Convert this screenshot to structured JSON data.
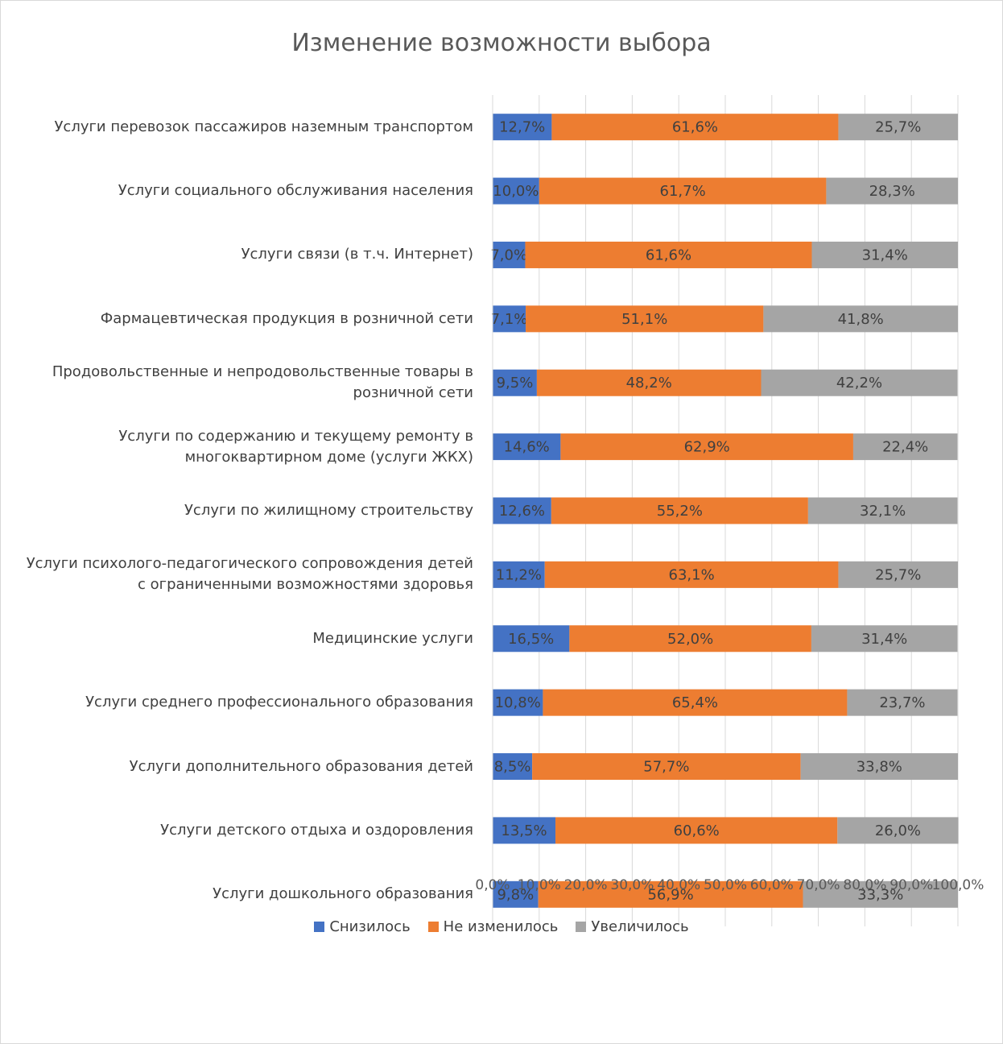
{
  "chart_data": {
    "type": "bar",
    "orientation": "horizontal",
    "stacked": "percent",
    "title": "Изменение возможности выбора",
    "categories": [
      "Услуги перевозок пассажиров наземным транспортом",
      "Услуги социального обслуживания населения",
      "Услуги связи (в т.ч. Интернет)",
      "Фармацевтическая продукция в розничной сети",
      "Продовольственные и непродовольственные товары в розничной сети",
      "Услуги по содержанию и текущему ремонту в многоквартирном доме (услуги ЖКХ)",
      "Услуги по жилищному строительству",
      "Услуги психолого-педагогического сопровождения детей с ограниченными возможностями здоровья",
      "Медицинские услуги",
      "Услуги среднего профессионального образования",
      "Услуги дополнительного образования детей",
      "Услуги детского отдыха и оздоровления",
      "Услуги дошкольного образования"
    ],
    "series": [
      {
        "name": "Снизилось",
        "color": "#4472c4",
        "values": [
          12.7,
          10.0,
          7.0,
          7.1,
          9.5,
          14.6,
          12.6,
          11.2,
          16.5,
          10.8,
          8.5,
          13.5,
          9.8
        ],
        "labels": [
          "12,7%",
          "10,0%",
          "7,0%",
          "7,1%",
          "9,5%",
          "14,6%",
          "12,6%",
          "11,2%",
          "16,5%",
          "10,8%",
          "8,5%",
          "13,5%",
          "9,8%"
        ]
      },
      {
        "name": "Не изменилось",
        "color": "#ed7d31",
        "values": [
          61.6,
          61.7,
          61.6,
          51.1,
          48.2,
          62.9,
          55.2,
          63.1,
          52.0,
          65.4,
          57.7,
          60.6,
          56.9
        ],
        "labels": [
          "61,6%",
          "61,7%",
          "61,6%",
          "51,1%",
          "48,2%",
          "62,9%",
          "55,2%",
          "63,1%",
          "52,0%",
          "65,4%",
          "57,7%",
          "60,6%",
          "56,9%"
        ]
      },
      {
        "name": "Увеличилось",
        "color": "#a5a5a5",
        "values": [
          25.7,
          28.3,
          31.4,
          41.8,
          42.2,
          22.4,
          32.1,
          25.7,
          31.4,
          23.7,
          33.8,
          26.0,
          33.3
        ],
        "labels": [
          "25,7%",
          "28,3%",
          "31,4%",
          "41,8%",
          "42,2%",
          "22,4%",
          "32,1%",
          "25,7%",
          "31,4%",
          "23,7%",
          "33,8%",
          "26,0%",
          "33,3%"
        ]
      }
    ],
    "xlim": [
      0,
      100
    ],
    "xticks": [
      "0,0%",
      "10,0%",
      "20,0%",
      "30,0%",
      "40,0%",
      "50,0%",
      "60,0%",
      "70,0%",
      "80,0%",
      "90,0%",
      "100,0%"
    ],
    "grid": true,
    "legend": "bottom"
  }
}
